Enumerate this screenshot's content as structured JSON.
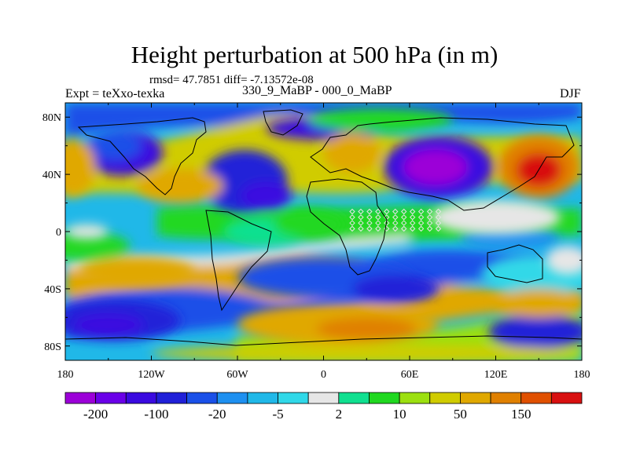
{
  "title": "Height perturbation at 500 hPa (in m)",
  "stats_text": "rmsd= 47.7851 diff= -7.13572e-08",
  "experiment_text": "Expt = teXxo-texka",
  "difference_text": "330_9_MaBP - 000_0_MaBP",
  "season": "DJF",
  "map": {
    "projection": "cylindrical equidistant",
    "lat_range": [
      -90,
      90
    ],
    "lon_range": [
      -180,
      180
    ],
    "y_ticks": [
      "80N",
      "40N",
      "0",
      "40S",
      "80S"
    ],
    "y_tick_values": [
      80,
      40,
      0,
      -40,
      -80
    ],
    "x_ticks": [
      "180",
      "120W",
      "60W",
      "0",
      "60E",
      "120E",
      "180"
    ],
    "x_tick_values": [
      -180,
      -120,
      -60,
      0,
      60,
      120,
      180
    ]
  },
  "colorbar": {
    "colors": [
      "#9c00d8",
      "#6a00e8",
      "#3a0ae0",
      "#2020d8",
      "#1a50e8",
      "#1e90f0",
      "#20b8e8",
      "#30d8e8",
      "#e6e6e6",
      "#10e090",
      "#20d820",
      "#9ce010",
      "#d0cc00",
      "#e0a800",
      "#e08000",
      "#e05000",
      "#d81010"
    ],
    "labels": [
      "-200",
      "-100",
      "-20",
      "-5",
      "2",
      "10",
      "50",
      "150"
    ]
  },
  "features": [
    {
      "lon": -140,
      "lat": 55,
      "rx": 28,
      "ry": 16,
      "level": 2
    },
    {
      "lon": -145,
      "lat": 60,
      "rx": 18,
      "ry": 10,
      "level": 4
    },
    {
      "lon": -55,
      "lat": 35,
      "rx": 30,
      "ry": 22,
      "level": 3
    },
    {
      "lon": -40,
      "lat": 25,
      "rx": 18,
      "ry": 10,
      "level": 2
    },
    {
      "lon": 80,
      "lat": 45,
      "rx": 38,
      "ry": 22,
      "level": 2
    },
    {
      "lon": 78,
      "lat": 45,
      "rx": 22,
      "ry": 12,
      "level": 0
    },
    {
      "lon": 0,
      "lat": 72,
      "rx": 40,
      "ry": 8,
      "level": 2
    },
    {
      "lon": 150,
      "lat": 45,
      "rx": 28,
      "ry": 22,
      "level": 14
    },
    {
      "lon": 150,
      "lat": 43,
      "rx": 16,
      "ry": 12,
      "level": 16
    },
    {
      "lon": -175,
      "lat": 45,
      "rx": 16,
      "ry": 20,
      "level": 13
    },
    {
      "lon": -100,
      "lat": 32,
      "rx": 30,
      "ry": 12,
      "level": 13
    },
    {
      "lon": 20,
      "lat": 55,
      "rx": 20,
      "ry": 14,
      "level": 13
    },
    {
      "lon": 40,
      "lat": 78,
      "rx": 50,
      "ry": 8,
      "level": 10
    },
    {
      "lon": -170,
      "lat": -10,
      "rx": 35,
      "ry": 10,
      "level": 10
    },
    {
      "lon": -130,
      "lat": -28,
      "rx": 40,
      "ry": 10,
      "level": 13
    },
    {
      "lon": -40,
      "lat": 0,
      "rx": 30,
      "ry": 10,
      "level": 9
    },
    {
      "lon": -10,
      "lat": 5,
      "rx": 25,
      "ry": 10,
      "level": 10
    },
    {
      "lon": 150,
      "lat": -30,
      "rx": 40,
      "ry": 14,
      "level": 7
    },
    {
      "lon": 130,
      "lat": -5,
      "rx": 35,
      "ry": 8,
      "level": 5
    },
    {
      "lon": -145,
      "lat": -62,
      "rx": 45,
      "ry": 14,
      "level": 3
    },
    {
      "lon": -150,
      "lat": -65,
      "rx": 25,
      "ry": 8,
      "level": 2
    },
    {
      "lon": 0,
      "lat": -32,
      "rx": 60,
      "ry": 14,
      "level": 4
    },
    {
      "lon": 50,
      "lat": -40,
      "rx": 30,
      "ry": 10,
      "level": 3
    },
    {
      "lon": 10,
      "lat": -65,
      "rx": 70,
      "ry": 14,
      "level": 13
    },
    {
      "lon": 30,
      "lat": -68,
      "rx": 35,
      "ry": 8,
      "level": 14
    },
    {
      "lon": 150,
      "lat": -70,
      "rx": 35,
      "ry": 12,
      "level": 3
    },
    {
      "lon": 150,
      "lat": -50,
      "rx": 30,
      "ry": 10,
      "level": 13
    },
    {
      "lon": 30,
      "lat": -85,
      "rx": 150,
      "ry": 6,
      "level": 12
    }
  ],
  "white_patches": [
    {
      "lon": 120,
      "lat": 10,
      "rx": 45,
      "ry": 12
    },
    {
      "lon": 170,
      "lat": -20,
      "rx": 15,
      "ry": 10
    },
    {
      "lon": -165,
      "lat": 0,
      "rx": 15,
      "ry": 5
    }
  ]
}
